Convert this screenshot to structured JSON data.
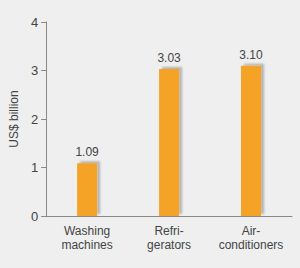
{
  "chart_data": {
    "type": "bar",
    "y_label": "US$ billion",
    "categories": [
      "Washing\nmachines",
      "Refri-\ngerators",
      "Air-\nconditioners"
    ],
    "values": [
      1.09,
      3.03,
      3.1
    ],
    "value_labels": [
      "1.09",
      "3.03",
      "3.10"
    ],
    "color": "#f5a327",
    "ylim": [
      0,
      4
    ],
    "yticks": [
      0,
      1,
      2,
      3,
      4
    ],
    "grid": false,
    "data_labels": true
  }
}
